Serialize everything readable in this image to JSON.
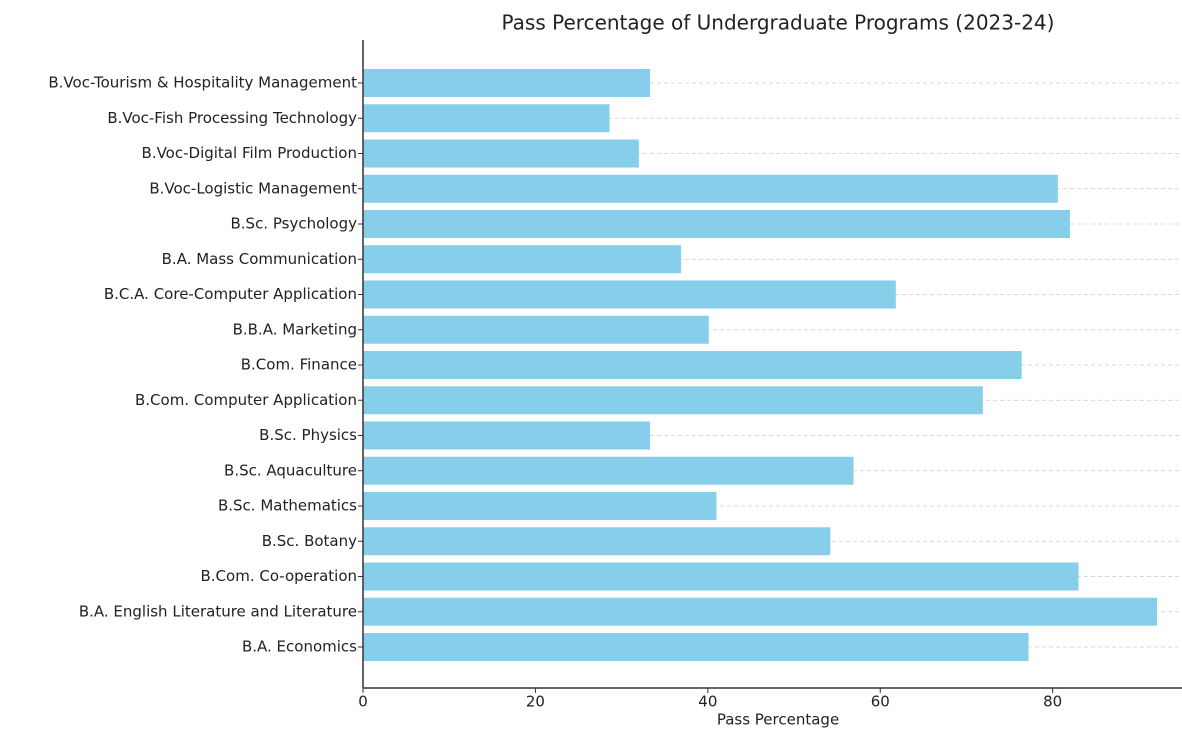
{
  "chart_data": {
    "type": "barh",
    "title": "Pass Percentage of Undergraduate Programs (2023-24)",
    "x_label": "Pass Percentage",
    "categories": [
      "B.A. Economics",
      "B.A. English Literature and Literature",
      "B.Com. Co-operation",
      "B.Sc. Botany",
      "B.Sc. Mathematics",
      "B.Sc. Aquaculture",
      "B.Sc. Physics",
      "B.Com. Computer Application",
      "B.Com. Finance",
      "B.B.A. Marketing",
      "B.C.A. Core-Computer Application",
      "B.A. Mass Communication",
      "B.Sc. Psychology",
      "B.Voc-Logistic Management",
      "B.Voc-Digital Film Production",
      "B.Voc-Fish Processing Technology",
      "B.Voc-Tourism & Hospitality Management"
    ],
    "values": [
      77.2,
      92.1,
      83.0,
      54.2,
      41.0,
      56.9,
      33.3,
      71.9,
      76.4,
      40.1,
      61.8,
      36.9,
      82.0,
      80.6,
      32.0,
      28.6,
      33.3
    ],
    "color": "#87ceeb",
    "xlim": [
      0,
      95
    ],
    "xticks": [
      0,
      20,
      40,
      60,
      80
    ],
    "grid": true
  }
}
